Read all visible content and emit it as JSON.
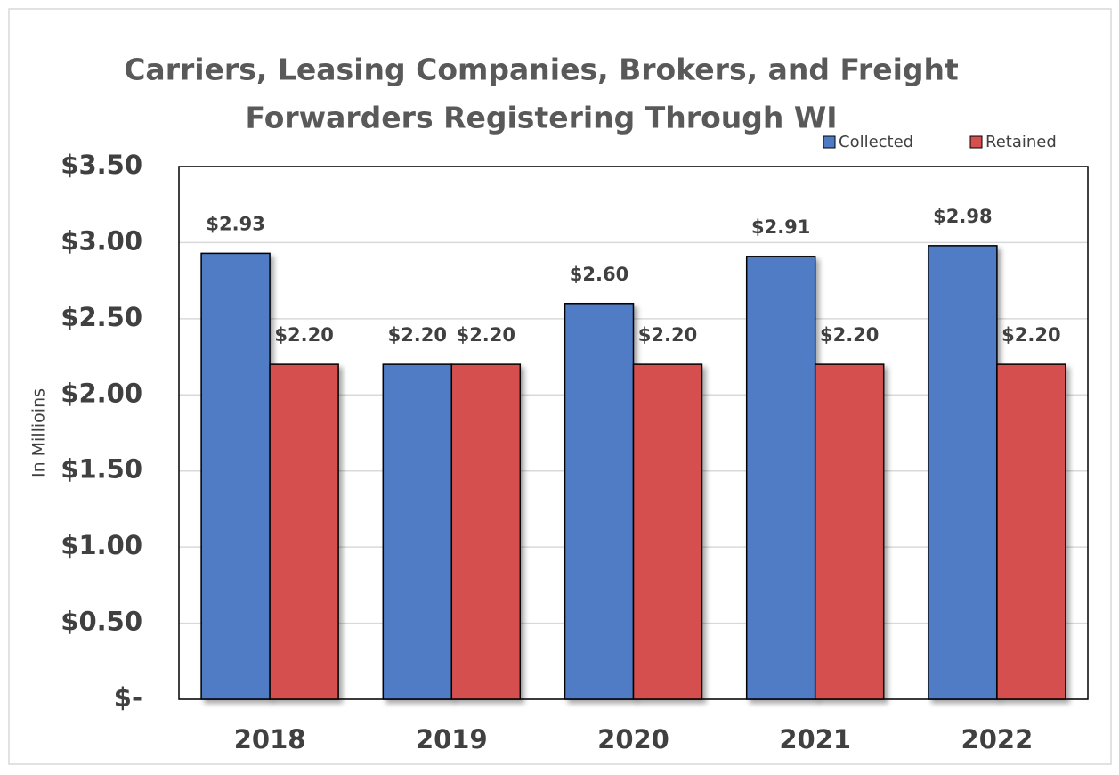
{
  "chart_data": {
    "type": "bar",
    "title": [
      "Carriers, Leasing Companies, Brokers, and Freight",
      "Forwarders Registering Through WI"
    ],
    "y_label": "In Millioins",
    "categories": [
      "2018",
      "2019",
      "2020",
      "2021",
      "2022"
    ],
    "series": [
      {
        "name": "Collected",
        "color": "#4f7bc4",
        "values": [
          2.93,
          2.2,
          2.6,
          2.91,
          2.98
        ],
        "value_labels": [
          "$2.93",
          "$2.20",
          "$2.60",
          "$2.91",
          "$2.98"
        ]
      },
      {
        "name": "Retained",
        "color": "#d64f4f",
        "values": [
          2.2,
          2.2,
          2.2,
          2.2,
          2.2
        ],
        "value_labels": [
          "$2.20",
          "$2.20",
          "$2.20",
          "$2.20",
          "$2.20"
        ]
      }
    ],
    "ylim": [
      0,
      3.5
    ],
    "yticks": [
      {
        "value": 0,
        "label": "$-"
      },
      {
        "value": 0.5,
        "label": "$0.50"
      },
      {
        "value": 1,
        "label": "$1.00"
      },
      {
        "value": 1.5,
        "label": "$1.50"
      },
      {
        "value": 2,
        "label": "$2.00"
      },
      {
        "value": 2.5,
        "label": "$2.50"
      },
      {
        "value": 3,
        "label": "$3.00"
      },
      {
        "value": 3.5,
        "label": "$3.50"
      }
    ],
    "grid": true,
    "legend": "top-right"
  }
}
